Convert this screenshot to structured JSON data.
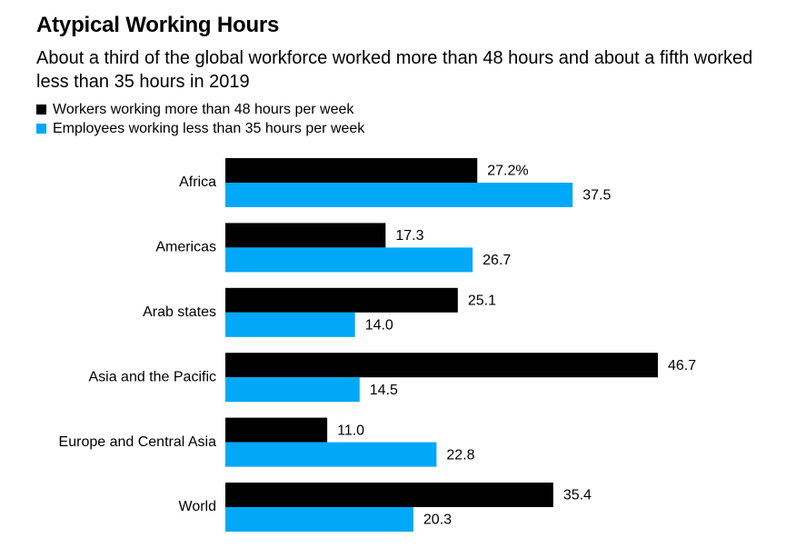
{
  "title": "Atypical Working Hours",
  "subtitle": "About a third of the global workforce worked more than 48 hours and about a fifth worked less than 35 hours in 2019",
  "colors": {
    "series1": "#000000",
    "series2": "#00A8F7"
  },
  "chart_data": {
    "type": "bar",
    "orientation": "horizontal",
    "title": "Atypical Working Hours",
    "subtitle": "About a third of the global workforce worked more than 48 hours and about a fifth worked less than 35 hours in 2019",
    "categories": [
      "Africa",
      "Americas",
      "Arab states",
      "Asia and the Pacific",
      "Europe and Central Asia",
      "World"
    ],
    "series": [
      {
        "name": "Workers working more than 48 hours per week",
        "color": "#000000",
        "values": [
          27.2,
          17.3,
          25.1,
          46.7,
          11.0,
          35.4
        ],
        "labels": [
          "27.2%",
          "17.3",
          "25.1",
          "46.7",
          "11.0",
          "35.4"
        ]
      },
      {
        "name": "Employees working less than 35 hours per week",
        "color": "#00A8F7",
        "values": [
          37.5,
          26.7,
          14.0,
          14.5,
          22.8,
          20.3
        ],
        "labels": [
          "37.5",
          "26.7",
          "14.0",
          "14.5",
          "22.8",
          "20.3"
        ]
      }
    ],
    "xlim": [
      0,
      46.7
    ],
    "legend": "top-left",
    "grid": false
  }
}
